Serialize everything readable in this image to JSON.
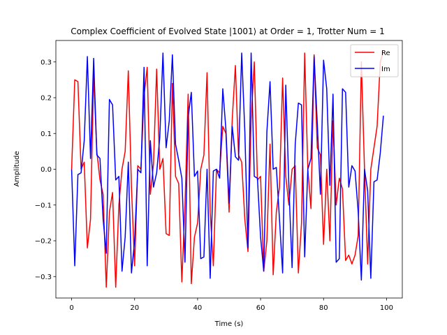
{
  "chart_data": {
    "type": "line",
    "title": "Complex Coefficient of Evolved State |1001⟩ at Order = 1, Trotter Num = 1",
    "xlabel": "Time (s)",
    "ylabel": "Amplitude",
    "xlim": [
      -5,
      105
    ],
    "ylim": [
      -0.36,
      0.36
    ],
    "xticks": [
      0,
      20,
      40,
      60,
      80,
      100
    ],
    "yticks": [
      -0.3,
      -0.2,
      -0.1,
      0.0,
      0.1,
      0.2,
      0.3
    ],
    "xtick_labels": [
      "0",
      "20",
      "40",
      "60",
      "80",
      "100"
    ],
    "ytick_labels": [
      "−0.3",
      "−0.2",
      "−0.1",
      "0.0",
      "0.1",
      "0.2",
      "0.3"
    ],
    "legend_position": "top-right",
    "grid": false,
    "x": [
      0,
      1,
      2,
      3,
      4,
      5,
      6,
      7,
      8,
      9,
      10,
      11,
      12,
      13,
      14,
      15,
      16,
      17,
      18,
      19,
      20,
      21,
      22,
      23,
      24,
      25,
      26,
      27,
      28,
      29,
      30,
      31,
      32,
      33,
      34,
      35,
      36,
      37,
      38,
      39,
      40,
      41,
      42,
      43,
      44,
      45,
      46,
      47,
      48,
      49,
      50,
      51,
      52,
      53,
      54,
      55,
      56,
      57,
      58,
      59,
      60,
      61,
      62,
      63,
      64,
      65,
      66,
      67,
      68,
      69,
      70,
      71,
      72,
      73,
      74,
      75,
      76,
      77,
      78,
      79,
      80,
      81,
      82,
      83,
      84,
      85,
      86,
      87,
      88,
      89,
      90,
      91,
      92,
      93,
      94,
      95,
      96,
      97,
      98,
      99
    ],
    "series": [
      {
        "name": "Re",
        "color": "#ff0000",
        "values": [
          0.0,
          0.25,
          0.245,
          0.0,
          0.02,
          -0.22,
          -0.14,
          0.265,
          0.05,
          -0.03,
          -0.07,
          -0.33,
          -0.12,
          -0.065,
          -0.33,
          -0.1,
          0.0,
          0.05,
          0.275,
          -0.05,
          -0.27,
          0.01,
          0.0,
          0.205,
          0.285,
          -0.07,
          0.015,
          0.28,
          0.0,
          0.03,
          -0.18,
          -0.185,
          0.24,
          -0.02,
          -0.04,
          -0.315,
          -0.1,
          0.21,
          -0.32,
          -0.19,
          -0.15,
          0.0,
          0.04,
          0.27,
          -0.12,
          -0.27,
          0.0,
          -0.01,
          0.12,
          0.1,
          -0.12,
          0.14,
          0.29,
          0.04,
          0.02,
          -0.14,
          -0.23,
          0.14,
          0.3,
          -0.03,
          -0.02,
          -0.285,
          -0.2,
          0.07,
          -0.295,
          -0.12,
          -0.05,
          0.255,
          -0.02,
          -0.1,
          0.0,
          0.01,
          -0.29,
          -0.15,
          0.325,
          0.0,
          -0.11,
          0.32,
          0.06,
          0.04,
          -0.21,
          0.0,
          -0.2,
          0.135,
          -0.1,
          -0.025,
          -0.055,
          -0.255,
          -0.24,
          -0.265,
          -0.24,
          -0.185,
          0.3,
          0.0,
          -0.265,
          0.0,
          0.06,
          0.12,
          0.3,
          0.33
        ]
      },
      {
        "name": "Im",
        "color": "#0000ff",
        "values": [
          0.0,
          -0.27,
          -0.015,
          -0.01,
          0.08,
          0.315,
          0.03,
          0.31,
          0.04,
          0.03,
          -0.14,
          -0.235,
          0.195,
          0.18,
          -0.03,
          -0.02,
          -0.285,
          -0.19,
          0.02,
          -0.29,
          -0.2,
          0.0,
          -0.01,
          0.285,
          -0.27,
          0.08,
          -0.05,
          -0.01,
          0.09,
          0.325,
          0.06,
          0.135,
          0.32,
          0.07,
          0.025,
          -0.025,
          -0.26,
          0.145,
          0.215,
          -0.02,
          -0.005,
          -0.25,
          -0.245,
          0.0,
          -0.305,
          -0.005,
          0.0,
          -0.025,
          0.225,
          0.11,
          -0.095,
          0.12,
          0.035,
          0.025,
          0.325,
          0.105,
          -0.22,
          0.325,
          -0.02,
          -0.025,
          -0.19,
          -0.285,
          0.105,
          0.245,
          0.0,
          0.005,
          -0.14,
          -0.29,
          0.235,
          -0.05,
          -0.275,
          0.07,
          0.185,
          0.18,
          -0.245,
          0.0,
          0.03,
          0.315,
          0.13,
          -0.07,
          0.305,
          0.225,
          -0.045,
          0.21,
          -0.26,
          -0.25,
          0.225,
          0.215,
          -0.05,
          0.01,
          -0.005,
          -0.12,
          -0.31,
          0.0,
          -0.06,
          -0.305,
          -0.035,
          -0.03,
          0.045,
          0.15
        ]
      }
    ]
  }
}
